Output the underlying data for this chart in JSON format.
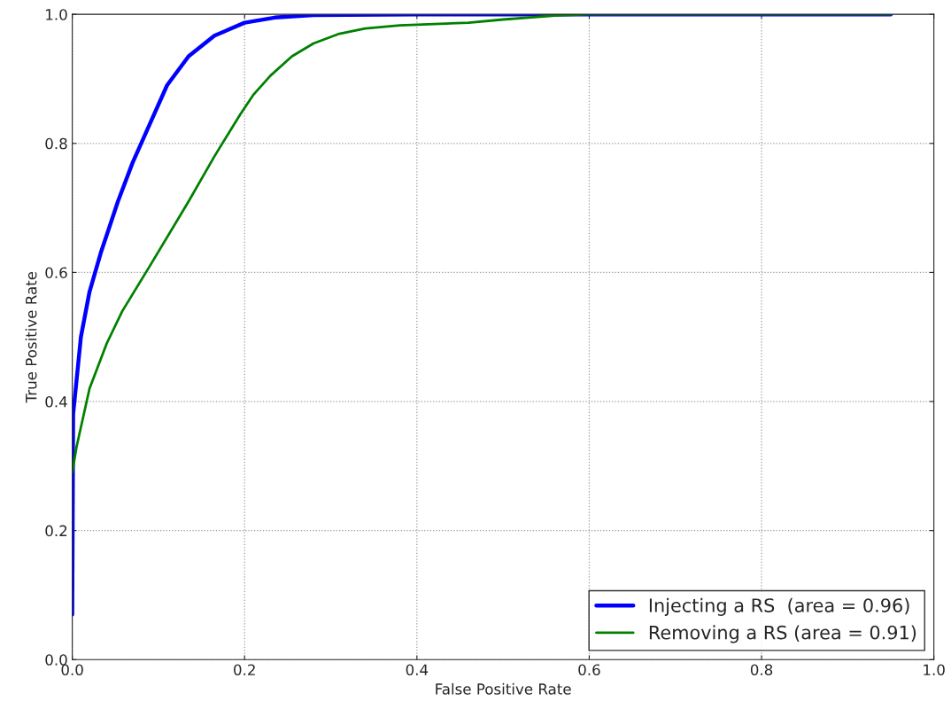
{
  "chart_data": {
    "type": "line",
    "xlabel": "False Positive Rate",
    "ylabel": "True Positive Rate",
    "xlim": [
      0,
      1
    ],
    "ylim": [
      0,
      1
    ],
    "xticks": [
      {
        "value": 0,
        "label": "0.0"
      },
      0.2,
      0.4,
      0.6,
      0.8,
      {
        "value": 1,
        "label": "1.0"
      }
    ],
    "yticks": [
      {
        "value": 0,
        "label": "0.0"
      },
      0.2,
      0.4,
      0.6,
      0.8,
      {
        "value": 1,
        "label": "1.0"
      }
    ],
    "grid": true,
    "legend": "bottom right",
    "marker": "none",
    "line_style": "solid",
    "series": [
      {
        "name": "Injecting a RS  (area = 0.96)",
        "color": "#0000ff",
        "x": [
          0,
          0.001,
          0.01,
          0.02,
          0.033,
          0.053,
          0.07,
          0.09,
          0.11,
          0.135,
          0.165,
          0.2,
          0.235,
          0.28,
          0.4,
          0.95
        ],
        "values": [
          0.07,
          0.38,
          0.5,
          0.57,
          0.63,
          0.71,
          0.77,
          0.83,
          0.89,
          0.935,
          0.967,
          0.987,
          0.995,
          0.999,
          1.0,
          1.0
        ]
      },
      {
        "name": "Removing a RS (area = 0.91)",
        "color": "#008000",
        "x": [
          0,
          0.005,
          0.02,
          0.04,
          0.058,
          0.09,
          0.135,
          0.165,
          0.195,
          0.21,
          0.23,
          0.255,
          0.28,
          0.31,
          0.34,
          0.38,
          0.46,
          0.5,
          0.56,
          0.6,
          0.95
        ],
        "values": [
          0.29,
          0.33,
          0.42,
          0.49,
          0.54,
          0.61,
          0.71,
          0.78,
          0.845,
          0.875,
          0.905,
          0.935,
          0.955,
          0.97,
          0.978,
          0.983,
          0.987,
          0.992,
          0.998,
          1.0,
          1.0
        ]
      }
    ]
  }
}
